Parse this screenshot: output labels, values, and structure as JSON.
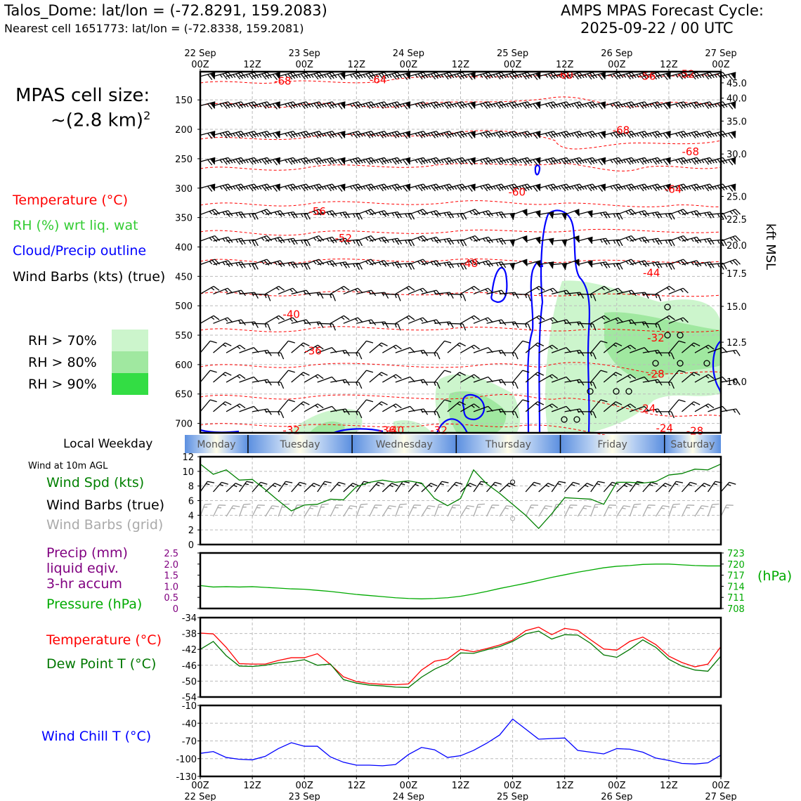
{
  "header": {
    "station": "Talos_Dome: lat/lon = (-72.8291, 159.2083)",
    "nearest_cell": "Nearest cell 1651773: lat/lon = (-72.8338, 159.2081)",
    "cycle_line1": "AMPS MPAS Forecast Cycle:",
    "cycle_line2": "2025-09-22 / 00 UTC",
    "cell_size_label": "MPAS cell size:",
    "cell_size_value": "~(2.8 km)",
    "cell_size_exp": "2"
  },
  "legend": {
    "temperature": "Temperature (°C)",
    "rh": "RH (%) wrt liq. wat",
    "cloud": "Cloud/Precip outline",
    "wind": "Wind Barbs (kts) (true)",
    "rh70": "RH > 70%",
    "rh80": "RH > 80%",
    "rh90": "RH > 90%",
    "weekday_title": "Local Weekday",
    "wind10m_title": "Wind at 10m AGL",
    "wind_spd": "Wind Spd (kts)",
    "wind_barbs_true": "Wind Barbs (true)",
    "wind_barbs_grid": "Wind Barbs (grid)",
    "precip1": "Precip (mm)",
    "precip2": "liquid eqiv.",
    "precip3": "3-hr accum",
    "pressure": "Pressure (hPa)",
    "temp2m": "Temperature (°C)",
    "dewpoint": "Dew Point T (°C)",
    "windchill": "Wind Chill T (°C)",
    "hpa_unit": "(hPa)",
    "kft": "kft MSL"
  },
  "colors": {
    "temperature": "#ff0000",
    "rh_legend": "#33cc33",
    "rh_line": "#009900",
    "cloud": "#0000ff",
    "wind": "#000000",
    "grid_barbs": "#aaaaaa",
    "precip": "#800080",
    "pressure": "#00aa00",
    "dewpoint": "#007700",
    "rh70": "#ccf5cc",
    "rh80": "#a0e8a0",
    "rh90": "#33dd44"
  },
  "chart_data": [
    {
      "type": "heatmap",
      "name": "vertical cross-section",
      "x_top_ticks": [
        {
          "hour": 0,
          "date": "22 Sep",
          "time": "00Z"
        },
        {
          "hour": 12,
          "date": "",
          "time": "12Z"
        },
        {
          "hour": 24,
          "date": "23 Sep",
          "time": "00Z"
        },
        {
          "hour": 36,
          "date": "",
          "time": "12Z"
        },
        {
          "hour": 48,
          "date": "24 Sep",
          "time": "00Z"
        },
        {
          "hour": 60,
          "date": "",
          "time": "12Z"
        },
        {
          "hour": 72,
          "date": "25 Sep",
          "time": "00Z"
        },
        {
          "hour": 84,
          "date": "",
          "time": "12Z"
        },
        {
          "hour": 96,
          "date": "26 Sep",
          "time": "00Z"
        },
        {
          "hour": 108,
          "date": "",
          "time": "12Z"
        },
        {
          "hour": 120,
          "date": "27 Sep",
          "time": "00Z"
        }
      ],
      "pressure_ticks": [
        150,
        200,
        250,
        300,
        350,
        400,
        450,
        500,
        550,
        600,
        650,
        700
      ],
      "pressure_top": 102,
      "pressure_bottom": 716,
      "kft_ticks": [
        {
          "p": 121,
          "label": "45.0"
        },
        {
          "p": 147,
          "label": "40.0"
        },
        {
          "p": 186,
          "label": "35.0"
        },
        {
          "p": 242,
          "label": "30.0"
        },
        {
          "p": 314,
          "label": "25.0"
        },
        {
          "p": 353,
          "label": "22.5"
        },
        {
          "p": 397,
          "label": "20.0"
        },
        {
          "p": 445,
          "label": "17.5"
        },
        {
          "p": 501,
          "label": "15.0"
        },
        {
          "p": 562,
          "label": "12.5"
        },
        {
          "p": 629,
          "label": "10.0"
        }
      ],
      "barb_levels": [
        110,
        160,
        210,
        255,
        300,
        345,
        390,
        430,
        480,
        530,
        580,
        630,
        680
      ],
      "isotherm_labels": [
        {
          "hour": 19,
          "p": 118,
          "label": "-68"
        },
        {
          "hour": 41,
          "p": 116,
          "label": "-64"
        },
        {
          "hour": 84,
          "p": 108,
          "label": "-60"
        },
        {
          "hour": 103,
          "p": 110,
          "label": "-56"
        },
        {
          "hour": 112,
          "p": 106,
          "label": "-52"
        },
        {
          "hour": 97,
          "p": 202,
          "label": "-68"
        },
        {
          "hour": 113,
          "p": 238,
          "label": "-68"
        },
        {
          "hour": 109,
          "p": 302,
          "label": "-64"
        },
        {
          "hour": 73,
          "p": 307,
          "label": "-60"
        },
        {
          "hour": 27,
          "p": 340,
          "label": "-56"
        },
        {
          "hour": 33,
          "p": 385,
          "label": "-52"
        },
        {
          "hour": 62,
          "p": 428,
          "label": "-48"
        },
        {
          "hour": 104,
          "p": 444,
          "label": "-44"
        },
        {
          "hour": 21,
          "p": 515,
          "label": "-40"
        },
        {
          "hour": 26,
          "p": 577,
          "label": "-36"
        },
        {
          "hour": 105,
          "p": 555,
          "label": "-32"
        },
        {
          "hour": 105,
          "p": 616,
          "label": "-28"
        },
        {
          "hour": 103,
          "p": 675,
          "label": "-24"
        },
        {
          "hour": 107,
          "p": 708,
          "label": "-24"
        },
        {
          "hour": 114,
          "p": 713,
          "label": "-28"
        },
        {
          "hour": 21,
          "p": 712,
          "label": "-32"
        },
        {
          "hour": 43,
          "p": 712,
          "label": "-36"
        },
        {
          "hour": 45,
          "p": 712,
          "label": "-40"
        },
        {
          "hour": 55,
          "p": 712,
          "label": "-32"
        }
      ]
    },
    {
      "type": "line",
      "name": "wind speed 10m",
      "x_hours": [
        0,
        3,
        6,
        9,
        12,
        15,
        18,
        21,
        24,
        27,
        30,
        33,
        36,
        39,
        42,
        45,
        48,
        51,
        54,
        57,
        60,
        63,
        66,
        69,
        72,
        75,
        78,
        81,
        84,
        87,
        90,
        93,
        96,
        99,
        102,
        105,
        108,
        111,
        114,
        117,
        120
      ],
      "values": [
        11,
        9.6,
        10.2,
        8.8,
        8.9,
        7.5,
        6,
        4.6,
        5.4,
        5.5,
        6.2,
        6.1,
        7.9,
        8.5,
        8.8,
        8.5,
        8.7,
        8.4,
        6.3,
        5.3,
        6.3,
        10.2,
        8.3,
        7,
        5.5,
        4,
        2.2,
        4.2,
        6.4,
        6.3,
        6.2,
        5.5,
        8.5,
        8.5,
        8.4,
        8.6,
        9.5,
        9.7,
        10.3,
        10.2,
        11
      ],
      "ylim": [
        0,
        12
      ],
      "yticks": [
        0,
        2,
        4,
        6,
        8,
        10,
        12
      ]
    },
    {
      "type": "line",
      "name": "precip and pressure",
      "x_hours": [
        0,
        3,
        6,
        9,
        12,
        15,
        18,
        21,
        24,
        27,
        30,
        33,
        36,
        39,
        42,
        45,
        48,
        51,
        54,
        57,
        60,
        63,
        66,
        69,
        72,
        75,
        78,
        81,
        84,
        87,
        90,
        93,
        96,
        99,
        102,
        105,
        108,
        111,
        114,
        117,
        120
      ],
      "pressure_values": [
        714.2,
        713.8,
        713.9,
        713.8,
        713.9,
        713.7,
        713.5,
        713.3,
        713.2,
        712.9,
        712.6,
        712.2,
        711.8,
        711.5,
        711.2,
        710.9,
        710.7,
        710.6,
        710.7,
        710.9,
        711.3,
        711.9,
        712.6,
        713.4,
        714.1,
        714.8,
        715.6,
        716.4,
        717.1,
        717.8,
        718.4,
        719,
        719.4,
        719.6,
        719.9,
        720,
        720,
        719.8,
        719.6,
        719.5,
        719.5
      ],
      "precip_values": [],
      "precip_ylim": [
        0,
        2.5
      ],
      "precip_yticks": [
        "0",
        "0.5",
        "1.0",
        "1.5",
        "2.0",
        "2.5"
      ],
      "pressure_ylim": [
        708,
        723
      ],
      "pressure_yticks": [
        "708",
        "711",
        "714",
        "717",
        "720",
        "723"
      ]
    },
    {
      "type": "line",
      "name": "temperature and dew point",
      "x_hours": [
        0,
        3,
        6,
        9,
        12,
        15,
        18,
        21,
        24,
        27,
        30,
        33,
        36,
        39,
        42,
        45,
        48,
        51,
        54,
        57,
        60,
        63,
        66,
        69,
        72,
        75,
        78,
        81,
        84,
        87,
        90,
        93,
        96,
        99,
        102,
        105,
        108,
        111,
        114,
        117,
        120
      ],
      "series": [
        {
          "name": "Temperature",
          "values": [
            -37.9,
            -38.1,
            -41.5,
            -45.6,
            -45.7,
            -45.7,
            -44.8,
            -44.1,
            -44.1,
            -43.1,
            -45.8,
            -48.9,
            -50.1,
            -50.6,
            -50.8,
            -50.9,
            -50.7,
            -47.2,
            -45,
            -44.4,
            -42,
            -42.6,
            -41.8,
            -40.9,
            -39.7,
            -37.3,
            -36.4,
            -38.3,
            -36.7,
            -37.2,
            -39.6,
            -41.9,
            -42.2,
            -40,
            -38.9,
            -40.8,
            -43.7,
            -45.3,
            -46.4,
            -45.7,
            -41.3
          ]
        },
        {
          "name": "Dew Point",
          "values": [
            -42,
            -40,
            -43.6,
            -46.2,
            -46.3,
            -46,
            -45.4,
            -45.1,
            -44.6,
            -46,
            -45.7,
            -49.6,
            -50.5,
            -51,
            -51.2,
            -51.5,
            -51.6,
            -49,
            -47,
            -45.5,
            -42.9,
            -43,
            -42.1,
            -41.3,
            -40,
            -38.1,
            -37.4,
            -39.4,
            -38.3,
            -38.4,
            -40.5,
            -43.4,
            -44,
            -42,
            -39.6,
            -41.5,
            -44.5,
            -46.2,
            -47.2,
            -47.5,
            -43.7
          ]
        }
      ],
      "ylim": [
        -54,
        -34
      ],
      "yticks": [
        -54,
        -50,
        -46,
        -42,
        -38,
        -34
      ]
    },
    {
      "type": "line",
      "name": "wind chill",
      "x_hours": [
        0,
        3,
        6,
        9,
        12,
        15,
        18,
        21,
        24,
        27,
        30,
        33,
        36,
        39,
        42,
        45,
        48,
        51,
        54,
        57,
        60,
        63,
        66,
        69,
        72,
        75,
        78,
        81,
        84,
        87,
        90,
        93,
        96,
        99,
        102,
        105,
        108,
        111,
        114,
        117,
        120
      ],
      "values": [
        -91,
        -88,
        -98,
        -101,
        -102,
        -96,
        -83,
        -73,
        -79,
        -79,
        -97,
        -106,
        -111,
        -111,
        -112,
        -110,
        -93,
        -81,
        -85,
        -98,
        -95,
        -86,
        -74,
        -60,
        -33,
        -50,
        -67,
        -66,
        -65,
        -86,
        -89,
        -92,
        -83,
        -84,
        -89,
        -99,
        -103,
        -108,
        -109,
        -107,
        -94
      ],
      "ylim": [
        -130,
        -10
      ],
      "yticks": [
        -130,
        -100,
        -70,
        -40,
        -10
      ],
      "x_bottom_ticks": [
        {
          "hour": 0,
          "time": "00Z",
          "date": "22 Sep"
        },
        {
          "hour": 12,
          "time": "12Z",
          "date": ""
        },
        {
          "hour": 24,
          "time": "00Z",
          "date": "23 Sep"
        },
        {
          "hour": 36,
          "time": "12Z",
          "date": ""
        },
        {
          "hour": 48,
          "time": "00Z",
          "date": "24 Sep"
        },
        {
          "hour": 60,
          "time": "12Z",
          "date": ""
        },
        {
          "hour": 72,
          "time": "00Z",
          "date": "25 Sep"
        },
        {
          "hour": 84,
          "time": "12Z",
          "date": ""
        },
        {
          "hour": 96,
          "time": "00Z",
          "date": "26 Sep"
        },
        {
          "hour": 108,
          "time": "12Z",
          "date": ""
        },
        {
          "hour": 120,
          "time": "00Z",
          "date": "27 Sep"
        }
      ]
    }
  ],
  "weekday_bar": {
    "days": [
      {
        "name": "Monday",
        "start_hour": -13
      },
      {
        "name": "Tuesday",
        "start_hour": 11
      },
      {
        "name": "Wednesday",
        "start_hour": 35
      },
      {
        "name": "Thursday",
        "start_hour": 59
      },
      {
        "name": "Friday",
        "start_hour": 83
      },
      {
        "name": "Saturday",
        "start_hour": 107
      }
    ]
  }
}
